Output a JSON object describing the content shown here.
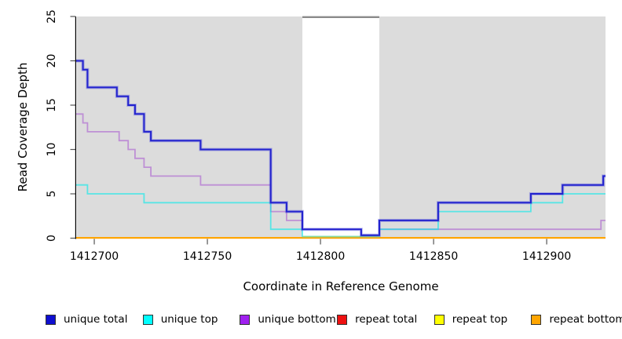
{
  "chart_data": {
    "type": "line",
    "subtype": "step-coverage",
    "title": "",
    "xlabel": "Coordinate in Reference Genome",
    "ylabel": "Read Coverage Depth",
    "xlim": [
      1412692,
      1412926
    ],
    "ylim": [
      0,
      25
    ],
    "x_ticks": [
      1412700,
      1412750,
      1412800,
      1412850,
      1412900
    ],
    "y_ticks": [
      0,
      5,
      10,
      15,
      20,
      25
    ],
    "grid": "off",
    "legend_position": "bottom",
    "plot_bg_color": "#dcdcdc",
    "gap_region": {
      "x0": 1412792,
      "x1": 1412826,
      "fill": "#ffffff",
      "top_marker_color": "#8a8a8a"
    },
    "series": [
      {
        "name": "unique total",
        "color": "#2323ce",
        "halo": "rgba(70,70,220,0.35)",
        "width": 2,
        "draw_order": 7,
        "points": [
          [
            1412692,
            20
          ],
          [
            1412695,
            19
          ],
          [
            1412697,
            17
          ],
          [
            1412710,
            16
          ],
          [
            1412715,
            15
          ],
          [
            1412718,
            14
          ],
          [
            1412722,
            12
          ],
          [
            1412725,
            11
          ],
          [
            1412747,
            10
          ],
          [
            1412778,
            4
          ],
          [
            1412785,
            3
          ],
          [
            1412792,
            1
          ],
          [
            1412818,
            0
          ],
          [
            1412826,
            2
          ],
          [
            1412852,
            4
          ],
          [
            1412893,
            5
          ],
          [
            1412907,
            6
          ],
          [
            1412925,
            7
          ],
          [
            1412926,
            7
          ]
        ]
      },
      {
        "name": "unique top",
        "color": "rgba(0,235,235,0.60)",
        "width": 1.8,
        "draw_order": 5,
        "points": [
          [
            1412692,
            6
          ],
          [
            1412697,
            5
          ],
          [
            1412722,
            4
          ],
          [
            1412778,
            1
          ],
          [
            1412792,
            0
          ],
          [
            1412826,
            1
          ],
          [
            1412852,
            3
          ],
          [
            1412893,
            4
          ],
          [
            1412907,
            5
          ],
          [
            1412926,
            5
          ]
        ]
      },
      {
        "name": "unique bottom",
        "color": "rgba(153,50,204,0.45)",
        "width": 1.8,
        "draw_order": 4,
        "points": [
          [
            1412692,
            14
          ],
          [
            1412695,
            13
          ],
          [
            1412697,
            12
          ],
          [
            1412711,
            11
          ],
          [
            1412715,
            10
          ],
          [
            1412718,
            9
          ],
          [
            1412722,
            8
          ],
          [
            1412725,
            7
          ],
          [
            1412747,
            6
          ],
          [
            1412778,
            3
          ],
          [
            1412785,
            2
          ],
          [
            1412792,
            1
          ],
          [
            1412818,
            0
          ],
          [
            1412826,
            1
          ],
          [
            1412924,
            2
          ],
          [
            1412926,
            2
          ]
        ]
      },
      {
        "name": "repeat total",
        "color": "#ee0000",
        "width": 1.8,
        "draw_order": 1,
        "points": [
          [
            1412692,
            0
          ],
          [
            1412926,
            0
          ]
        ]
      },
      {
        "name": "repeat top",
        "color": "#ffff00",
        "width": 1.8,
        "draw_order": 2,
        "points": [
          [
            1412692,
            0
          ],
          [
            1412926,
            0
          ]
        ]
      },
      {
        "name": "repeat bottom",
        "color": "#ffa500",
        "width": 2,
        "draw_order": 3,
        "points": [
          [
            1412692,
            0
          ],
          [
            1412926,
            0
          ]
        ]
      }
    ],
    "overlap_segment": {
      "x0": 1412792,
      "x1": 1412826,
      "value": 0,
      "color": "#8fd694",
      "note": "unique top overlapping repeat top in zero-coverage gap renders pale green"
    }
  },
  "legend": {
    "items": [
      {
        "label": "unique total",
        "swatch_color": "#0f0fd0"
      },
      {
        "label": "unique top",
        "swatch_color": "#00ffff"
      },
      {
        "label": "unique bottom",
        "swatch_color": "#a020f0"
      },
      {
        "label": "repeat total",
        "swatch_color": "#ee1111"
      },
      {
        "label": "repeat top",
        "swatch_color": "#ffff00"
      },
      {
        "label": "repeat bottom",
        "swatch_color": "#ffa500"
      }
    ]
  }
}
